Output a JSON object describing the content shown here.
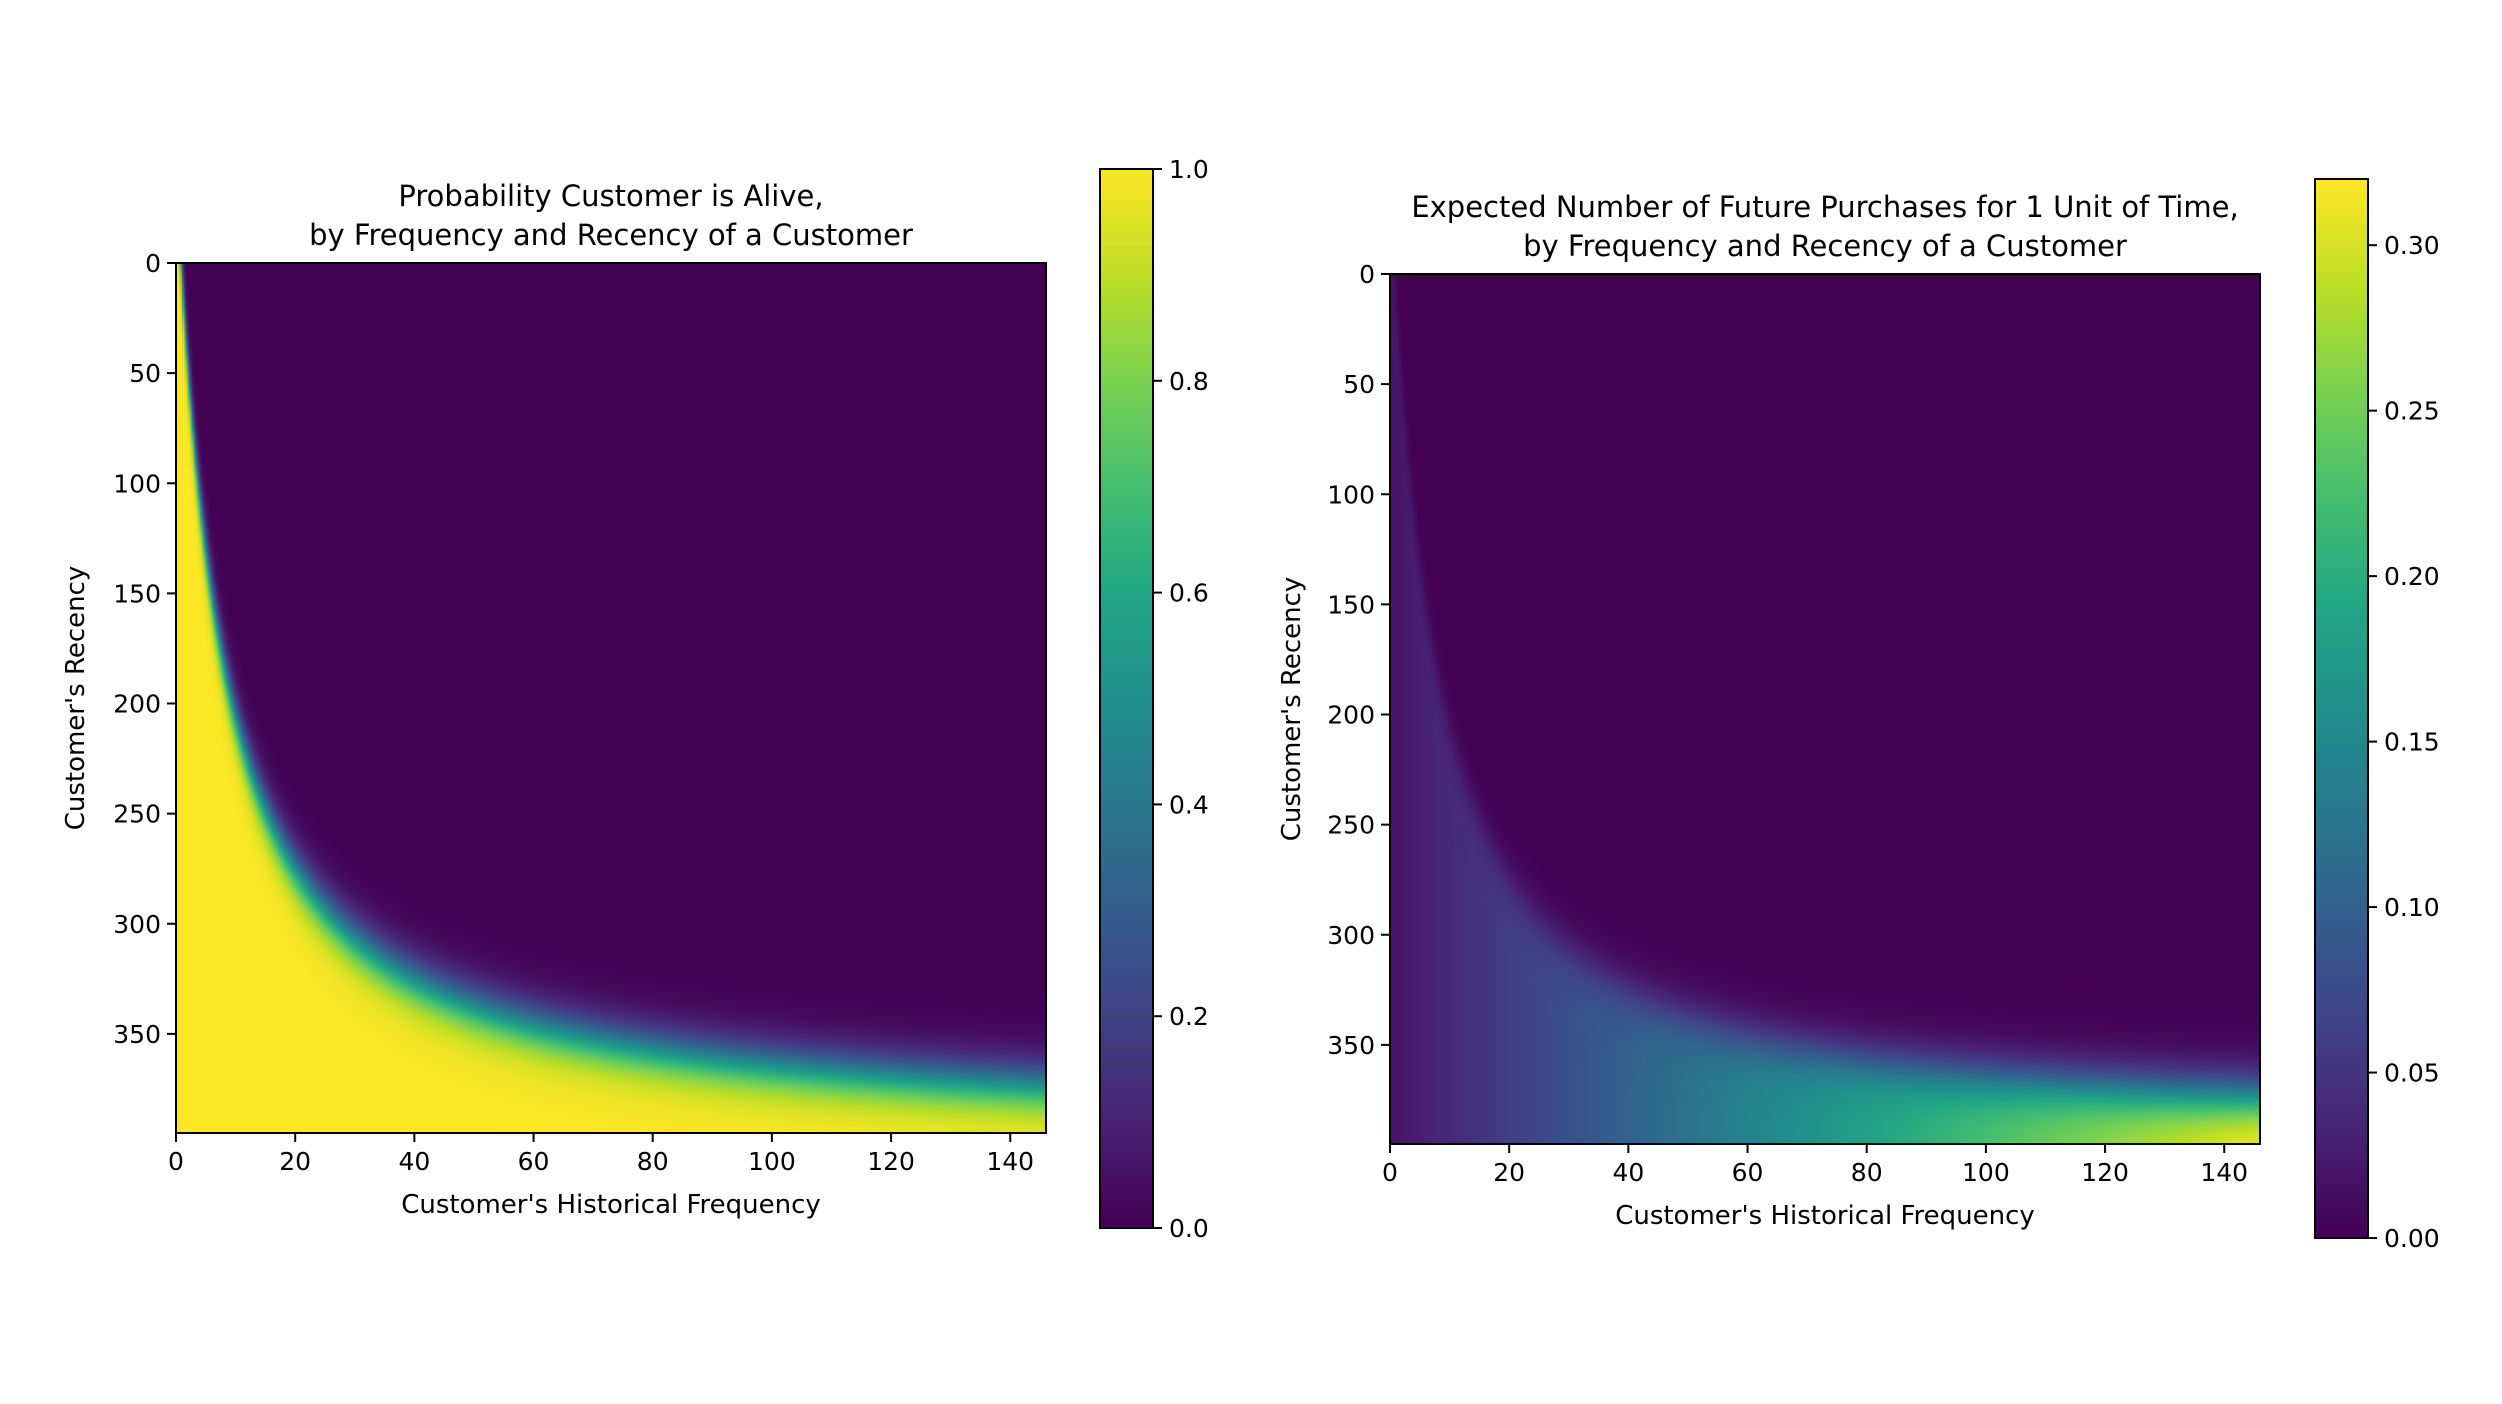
{
  "chart_data": [
    {
      "type": "heatmap",
      "title_line1": "Probability Customer is Alive,",
      "title_line2": "by Frequency and Recency of a Customer",
      "xlabel": "Customer's Historical Frequency",
      "ylabel": "Customer's Recency",
      "xlim": [
        0,
        146
      ],
      "ylim_top_to_bottom": [
        0,
        395
      ],
      "x_ticks": [
        0,
        20,
        40,
        60,
        80,
        100,
        120,
        140
      ],
      "y_ticks": [
        0,
        50,
        100,
        150,
        200,
        250,
        300,
        350
      ],
      "colorbar": {
        "min": 0.0,
        "max": 1.0,
        "ticks": [
          "0.0",
          "0.2",
          "0.4",
          "0.6",
          "0.8",
          "1.0"
        ],
        "tick_values": [
          0.0,
          0.2,
          0.4,
          0.6,
          0.8,
          1.0
        ]
      },
      "colormap": "viridis",
      "grid": false
    },
    {
      "type": "heatmap",
      "title_line1": "Expected Number of Future Purchases for 1 Unit of Time,",
      "title_line2": "by Frequency and Recency of a Customer",
      "xlabel": "Customer's Historical Frequency",
      "ylabel": "Customer's Recency",
      "xlim": [
        0,
        146
      ],
      "ylim_top_to_bottom": [
        0,
        395
      ],
      "x_ticks": [
        0,
        20,
        40,
        60,
        80,
        100,
        120,
        140
      ],
      "y_ticks": [
        0,
        50,
        100,
        150,
        200,
        250,
        300,
        350
      ],
      "colorbar": {
        "min": 0.0,
        "max": 0.32,
        "ticks": [
          "0.00",
          "0.05",
          "0.10",
          "0.15",
          "0.20",
          "0.25",
          "0.30"
        ],
        "tick_values": [
          0.0,
          0.05,
          0.1,
          0.15,
          0.2,
          0.25,
          0.3
        ]
      },
      "colormap": "viridis",
      "grid": false
    }
  ]
}
